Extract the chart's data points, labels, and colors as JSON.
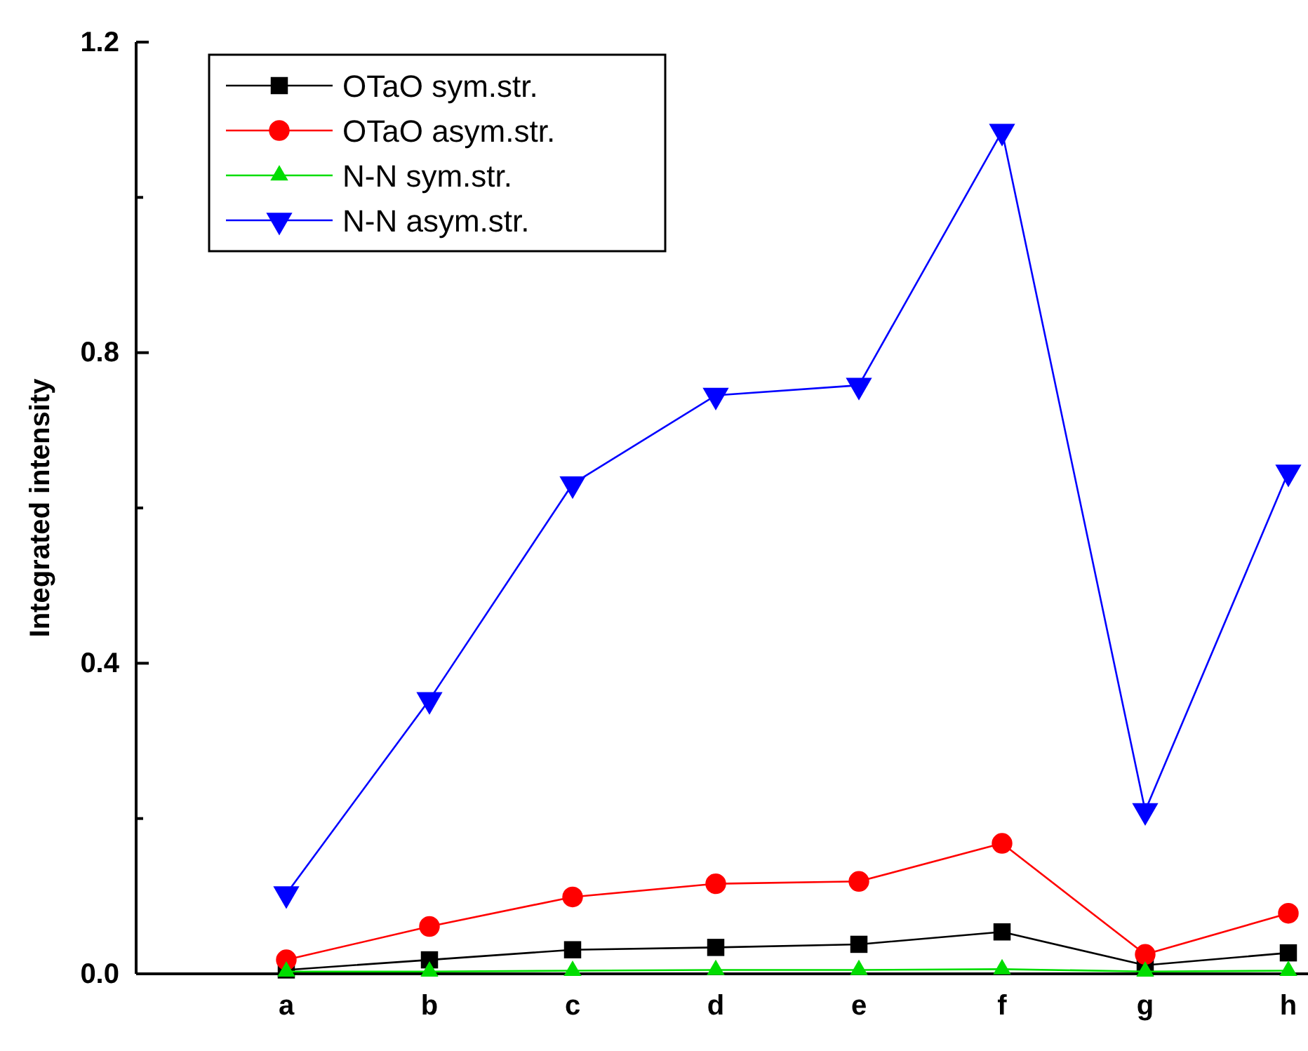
{
  "chart_data": {
    "type": "line",
    "ylabel": "Integrated intensity",
    "categories": [
      "a",
      "b",
      "c",
      "d",
      "e",
      "f",
      "g",
      "h"
    ],
    "series": [
      {
        "name": "OTaO sym.str.",
        "color": "#000000",
        "marker": "square",
        "values": [
          0.005,
          0.018,
          0.031,
          0.034,
          0.038,
          0.054,
          0.011,
          0.027
        ]
      },
      {
        "name": "OTaO asym.str.",
        "color": "#ff0000",
        "marker": "circle",
        "values": [
          0.018,
          0.061,
          0.099,
          0.116,
          0.119,
          0.168,
          0.025,
          0.078
        ]
      },
      {
        "name": "N-N sym.str.",
        "color": "#00dd00",
        "marker": "triangle",
        "values": [
          0.003,
          0.003,
          0.004,
          0.005,
          0.005,
          0.006,
          0.003,
          0.004
        ]
      },
      {
        "name": "N-N asym.str.",
        "color": "#0000ff",
        "marker": "triangle-down",
        "values": [
          0.103,
          0.353,
          0.631,
          0.745,
          0.758,
          1.085,
          0.21,
          0.646
        ]
      }
    ],
    "ylim": [
      0,
      1.2
    ],
    "yticks": [
      {
        "value": 0,
        "label": "0.0"
      },
      {
        "value": 0.2,
        "label": null
      },
      0.4,
      {
        "value": 0.6,
        "label": null
      },
      0.8,
      {
        "value": 1.0,
        "label": null
      },
      1.2
    ],
    "legend": "top left",
    "grid": false,
    "line_style": "solid"
  }
}
